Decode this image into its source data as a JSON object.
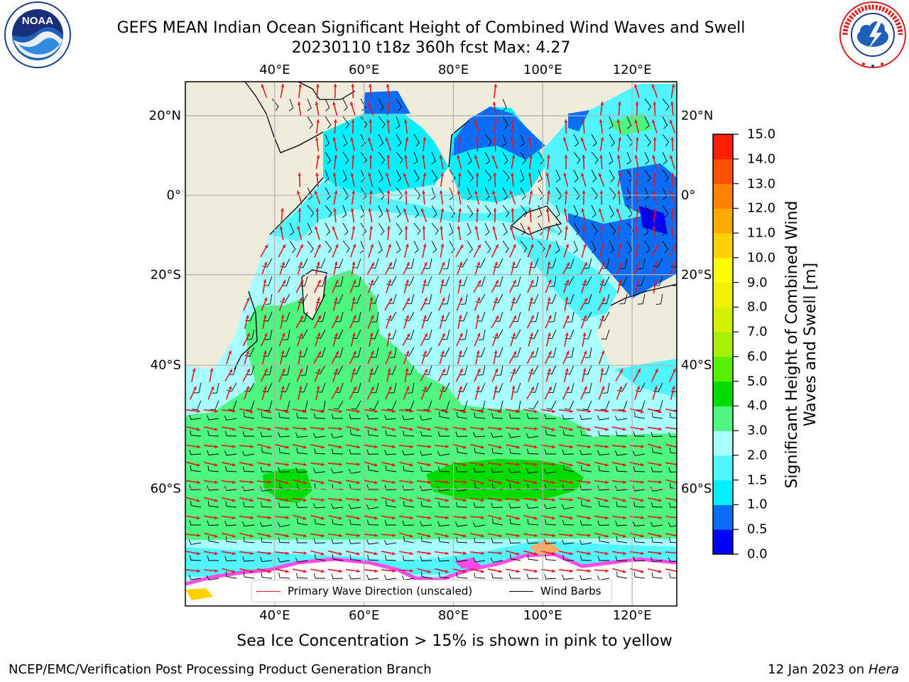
{
  "title": {
    "line1": "GEFS MEAN Indian Ocean Significant Height of Combined Wind Waves and Swell",
    "line2": "20230110 t18z 360h fcst   Max: 4.27"
  },
  "logos": {
    "left": {
      "name": "noaa-logo",
      "text": "NOAA",
      "ring_text": "NATIONAL OCEANIC AND ATMOSPHERIC ADMINISTRATION · U.S. DEPARTMENT OF COMMERCE"
    },
    "right": {
      "name": "nws-logo",
      "ring_text": "NATIONAL WEATHER SERVICE"
    }
  },
  "map": {
    "region": "Indian Ocean",
    "lon_range": [
      20,
      130
    ],
    "lat_range": [
      -72,
      28
    ],
    "lon_ticks": [
      {
        "value": 40,
        "label": "40°E"
      },
      {
        "value": 60,
        "label": "60°E"
      },
      {
        "value": 80,
        "label": "80°E"
      },
      {
        "value": 100,
        "label": "100°E"
      },
      {
        "value": 120,
        "label": "120°E"
      }
    ],
    "lat_ticks_left": [
      {
        "value": 20,
        "label": "20°N"
      },
      {
        "value": 0,
        "label": "0°"
      },
      {
        "value": -20,
        "label": "20°S"
      },
      {
        "value": -40,
        "label": "40°S"
      },
      {
        "value": -60,
        "label": "60°S"
      }
    ],
    "lat_ticks_right": [
      {
        "value": 20,
        "label": "20°N"
      },
      {
        "value": 0,
        "label": "0°"
      },
      {
        "value": -20,
        "label": "20°S"
      },
      {
        "value": -40,
        "label": "40°S"
      },
      {
        "value": -60,
        "label": "60°S"
      }
    ],
    "colors": {
      "land": "#efecdc",
      "grid": "#b0b0b0",
      "wave_arrow": "#e8141e",
      "wind_barb": "#000000",
      "coast": "#000000"
    }
  },
  "colorbar": {
    "label": "Significant Height of Combined Wind Waves and Swell [m]",
    "ticks": [
      "0.0",
      "0.5",
      "1.0",
      "1.5",
      "2.0",
      "3.0",
      "4.0",
      "5.0",
      "6.0",
      "7.0",
      "8.0",
      "9.0",
      "10.0",
      "11.0",
      "12.0",
      "13.0",
      "14.0",
      "15.0"
    ],
    "colors": [
      "#0000ff",
      "#0a6df5",
      "#00f0ff",
      "#50f5ff",
      "#a8ffff",
      "#4ef57e",
      "#00dc00",
      "#58f000",
      "#a6f000",
      "#d2f000",
      "#f0f000",
      "#ffff00",
      "#ffd200",
      "#ffaa00",
      "#ff8200",
      "#ff5000",
      "#ff1e00"
    ]
  },
  "legend": {
    "wave_label": "Primary Wave Direction (unscaled)",
    "wind_label": "Wind Barbs"
  },
  "caption": "Sea Ice Concentration > 15% is shown in pink to yellow",
  "footer": {
    "left": "NCEP/EMC/Verification Post Processing Product Generation Branch",
    "date": "12 Jan 2023 on",
    "machine": "Hera"
  }
}
